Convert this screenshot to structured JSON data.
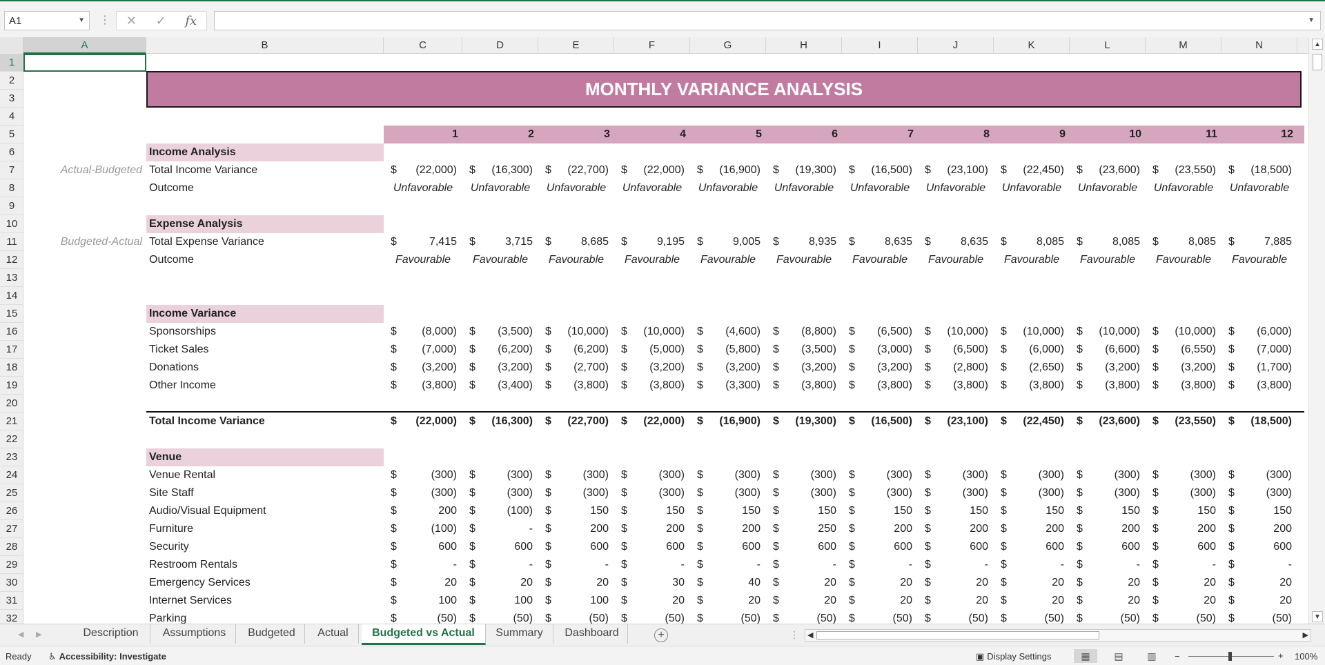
{
  "formula_bar": {
    "name_box": "A1",
    "formula": ""
  },
  "columns": [
    "A",
    "B",
    "C",
    "D",
    "E",
    "F",
    "G",
    "H",
    "I",
    "J",
    "K",
    "L",
    "M",
    "N"
  ],
  "rows": [
    "1",
    "2",
    "3",
    "4",
    "5",
    "6",
    "7",
    "8",
    "9",
    "10",
    "11",
    "12",
    "13",
    "14",
    "15",
    "16",
    "17",
    "18",
    "19",
    "20",
    "21",
    "22",
    "23",
    "24",
    "25",
    "26",
    "27",
    "28",
    "29",
    "30",
    "31",
    "32"
  ],
  "title": "MONTHLY VARIANCE ANALYSIS",
  "months": [
    "1",
    "2",
    "3",
    "4",
    "5",
    "6",
    "7",
    "8",
    "9",
    "10",
    "11",
    "12"
  ],
  "income_analysis": {
    "header": "Income Analysis",
    "note": "Actual-Budgeted",
    "total_label": "Total Income Variance",
    "values": [
      "(22,000)",
      "(16,300)",
      "(22,700)",
      "(22,000)",
      "(16,900)",
      "(19,300)",
      "(16,500)",
      "(23,100)",
      "(22,450)",
      "(23,600)",
      "(23,550)",
      "(18,500)"
    ],
    "outcome_label": "Outcome",
    "outcomes": [
      "Unfavorable",
      "Unfavorable",
      "Unfavorable",
      "Unfavorable",
      "Unfavorable",
      "Unfavorable",
      "Unfavorable",
      "Unfavorable",
      "Unfavorable",
      "Unfavorable",
      "Unfavorable",
      "Unfavorable"
    ]
  },
  "expense_analysis": {
    "header": "Expense Analysis",
    "note": "Budgeted-Actual",
    "total_label": "Total Expense Variance",
    "values": [
      "7,415",
      "3,715",
      "8,685",
      "9,195",
      "9,005",
      "8,935",
      "8,635",
      "8,635",
      "8,085",
      "8,085",
      "8,085",
      "7,885"
    ],
    "outcome_label": "Outcome",
    "outcomes": [
      "Favourable",
      "Favourable",
      "Favourable",
      "Favourable",
      "Favourable",
      "Favourable",
      "Favourable",
      "Favourable",
      "Favourable",
      "Favourable",
      "Favourable",
      "Favourable"
    ]
  },
  "income_variance": {
    "header": "Income Variance",
    "lines": [
      {
        "label": "Sponsorships",
        "values": [
          "(8,000)",
          "(3,500)",
          "(10,000)",
          "(10,000)",
          "(4,600)",
          "(8,800)",
          "(6,500)",
          "(10,000)",
          "(10,000)",
          "(10,000)",
          "(10,000)",
          "(6,000)"
        ]
      },
      {
        "label": "Ticket Sales",
        "values": [
          "(7,000)",
          "(6,200)",
          "(6,200)",
          "(5,000)",
          "(5,800)",
          "(3,500)",
          "(3,000)",
          "(6,500)",
          "(6,000)",
          "(6,600)",
          "(6,550)",
          "(7,000)"
        ]
      },
      {
        "label": "Donations",
        "values": [
          "(3,200)",
          "(3,200)",
          "(2,700)",
          "(3,200)",
          "(3,200)",
          "(3,200)",
          "(3,200)",
          "(2,800)",
          "(2,650)",
          "(3,200)",
          "(3,200)",
          "(1,700)"
        ]
      },
      {
        "label": "Other Income",
        "values": [
          "(3,800)",
          "(3,400)",
          "(3,800)",
          "(3,800)",
          "(3,300)",
          "(3,800)",
          "(3,800)",
          "(3,800)",
          "(3,800)",
          "(3,800)",
          "(3,800)",
          "(3,800)"
        ]
      }
    ],
    "total": {
      "label": "Total Income Variance",
      "values": [
        "(22,000)",
        "(16,300)",
        "(22,700)",
        "(22,000)",
        "(16,900)",
        "(19,300)",
        "(16,500)",
        "(23,100)",
        "(22,450)",
        "(23,600)",
        "(23,550)",
        "(18,500)"
      ]
    }
  },
  "venue": {
    "header": "Venue",
    "lines": [
      {
        "label": "Venue Rental",
        "values": [
          "(300)",
          "(300)",
          "(300)",
          "(300)",
          "(300)",
          "(300)",
          "(300)",
          "(300)",
          "(300)",
          "(300)",
          "(300)",
          "(300)"
        ]
      },
      {
        "label": "Site Staff",
        "values": [
          "(300)",
          "(300)",
          "(300)",
          "(300)",
          "(300)",
          "(300)",
          "(300)",
          "(300)",
          "(300)",
          "(300)",
          "(300)",
          "(300)"
        ]
      },
      {
        "label": "Audio/Visual Equipment",
        "values": [
          "200",
          "(100)",
          "150",
          "150",
          "150",
          "150",
          "150",
          "150",
          "150",
          "150",
          "150",
          "150"
        ]
      },
      {
        "label": "Furniture",
        "values": [
          "(100)",
          "-",
          "200",
          "200",
          "200",
          "250",
          "200",
          "200",
          "200",
          "200",
          "200",
          "200"
        ]
      },
      {
        "label": "Security",
        "values": [
          "600",
          "600",
          "600",
          "600",
          "600",
          "600",
          "600",
          "600",
          "600",
          "600",
          "600",
          "600"
        ]
      },
      {
        "label": "Restroom Rentals",
        "values": [
          "-",
          "-",
          "-",
          "-",
          "-",
          "-",
          "-",
          "-",
          "-",
          "-",
          "-",
          "-"
        ]
      },
      {
        "label": "Emergency Services",
        "values": [
          "20",
          "20",
          "20",
          "30",
          "40",
          "20",
          "20",
          "20",
          "20",
          "20",
          "20",
          "20"
        ]
      },
      {
        "label": "Internet Services",
        "values": [
          "100",
          "100",
          "100",
          "20",
          "20",
          "20",
          "20",
          "20",
          "20",
          "20",
          "20",
          "20"
        ]
      },
      {
        "label": "Parking",
        "values": [
          "(50)",
          "(50)",
          "(50)",
          "(50)",
          "(50)",
          "(50)",
          "(50)",
          "(50)",
          "(50)",
          "(50)",
          "(50)",
          "(50)"
        ]
      }
    ]
  },
  "currency_symbol": "$",
  "sheet_tabs": [
    "Description",
    "Assumptions",
    "Budgeted",
    "Actual",
    "Budgeted vs Actual",
    "Summary",
    "Dashboard"
  ],
  "active_tab": "Budgeted vs Actual",
  "status": {
    "ready": "Ready",
    "accessibility": "Accessibility: Investigate",
    "display_settings": "Display Settings",
    "zoom": "100%"
  }
}
